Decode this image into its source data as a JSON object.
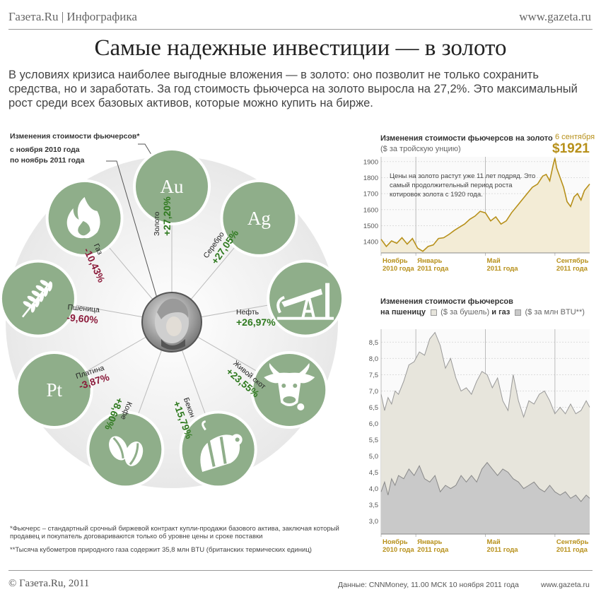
{
  "header": {
    "brand": "Газета.Ru | Инфографика",
    "site": "www.gazeta.ru",
    "title": "Самые надежные инвестиции — в золото",
    "lead": "В условиях кризиса наиболее выгодные вложения — в золото: оно позволит не только сохранить средства, но и заработать. За год стоимость фьючерса на золото выросла на 27,2%. Это максимальный рост среди всех базовых активов, которые можно купить на бирже."
  },
  "wheel": {
    "title": "Изменения стоимости фьючерсов*",
    "period_from": "с ноября 2010 года",
    "period_to": "по ноябрь 2011 года",
    "items": [
      {
        "name": "Золото",
        "change": "+27,20%",
        "value": 27.2,
        "symbol": "Au",
        "icon": "au-symbol"
      },
      {
        "name": "Серебро",
        "change": "+27,05%",
        "value": 27.05,
        "symbol": "Ag",
        "icon": "ag-symbol"
      },
      {
        "name": "Нефть",
        "change": "+26,97%",
        "value": 26.97,
        "symbol": "",
        "icon": "oil-pump-icon"
      },
      {
        "name": "Живой скот",
        "change": "+23,55%",
        "value": 23.55,
        "symbol": "",
        "icon": "cow-icon"
      },
      {
        "name": "Бекон",
        "change": "+15,79%",
        "value": 15.79,
        "symbol": "",
        "icon": "pig-icon"
      },
      {
        "name": "Кофе",
        "change": "+8,60%",
        "value": 8.6,
        "symbol": "",
        "icon": "coffee-bean-icon"
      },
      {
        "name": "Платина",
        "change": "-3,87%",
        "value": -3.87,
        "symbol": "Pt",
        "icon": "pt-symbol"
      },
      {
        "name": "Пшеница",
        "change": "-9,60%",
        "value": -9.6,
        "symbol": "",
        "icon": "wheat-icon"
      },
      {
        "name": "Газ",
        "change": "-10,43%",
        "value": -10.43,
        "symbol": "",
        "icon": "flame-icon"
      }
    ]
  },
  "footnotes": {
    "note1": "*Фьючерс – стандартный срочный биржевой контракт купли-продажи базового актива, заключая который продавец и покупатель договариваются только об уровне цены и сроке поставки",
    "note2": "**Тысяча кубометров природного газа содержит 35,8 млн BTU (британских термических единиц)"
  },
  "footer": {
    "copyright": "© Газета.Ru, 2011",
    "source": "Данные: CNNMoney, 11.00 МСК 10 ноября 2011 года",
    "site": "www.gazeta.ru"
  },
  "colors": {
    "disk": "#8fae8a",
    "gold_line": "#b7901a",
    "gold_area": "#f3ecd6",
    "wheat_area": "#e7e5dc",
    "gas_area": "#c9c9c9",
    "positive": "#2f7a1f",
    "negative": "#8b1a3a"
  },
  "chart_data": [
    {
      "type": "area",
      "title": "Изменения стоимости фьючерсов на золото",
      "subtitle": "($ за тройскую унцию)",
      "latest_date": "6 сентября",
      "latest_value": "$1921",
      "annotation": "Цены на золото растут уже 11 лет подряд. Это самый продолжительный период роста котировок золота с 1920 года.",
      "yticks": [
        1400,
        1500,
        1600,
        1700,
        1800,
        1900
      ],
      "ylim": [
        1330,
        1930
      ],
      "xticks": [
        {
          "line1": "Ноябрь",
          "line2": "2010 года",
          "x": 0
        },
        {
          "line1": "Январь",
          "line2": "2011 года",
          "x": 2
        },
        {
          "line1": "Май",
          "line2": "2011 года",
          "x": 6
        },
        {
          "line1": "Сентябрь",
          "line2": "2011 года",
          "x": 10
        }
      ],
      "xlim": [
        0,
        12
      ],
      "series": [
        {
          "x": [
            0,
            0.3,
            0.6,
            0.9,
            1.2,
            1.5,
            1.8,
            2.1,
            2.4,
            2.7,
            3.0,
            3.3,
            3.6,
            3.9,
            4.2,
            4.5,
            4.8,
            5.1,
            5.4,
            5.7,
            6.0,
            6.3,
            6.6,
            6.9,
            7.2,
            7.5,
            7.8,
            8.1,
            8.4,
            8.7,
            9.0,
            9.3,
            9.5,
            9.7,
            9.9,
            10.0,
            10.1,
            10.3,
            10.5,
            10.7,
            10.9,
            11.1,
            11.3,
            11.5,
            11.7,
            12.0
          ],
          "values": [
            1415,
            1370,
            1405,
            1390,
            1425,
            1385,
            1420,
            1360,
            1340,
            1370,
            1380,
            1420,
            1425,
            1445,
            1470,
            1490,
            1510,
            1540,
            1560,
            1590,
            1580,
            1530,
            1555,
            1510,
            1530,
            1580,
            1620,
            1660,
            1700,
            1740,
            1760,
            1810,
            1820,
            1780,
            1880,
            1921,
            1860,
            1800,
            1740,
            1650,
            1620,
            1680,
            1700,
            1660,
            1720,
            1760
          ]
        }
      ]
    },
    {
      "type": "area",
      "title": "Изменения стоимости фьючерсов",
      "legend": [
        {
          "prefix": "на пшеницу",
          "label": "($ за бушель)",
          "connector": "и газ",
          "color": "#e7e5dc"
        },
        {
          "prefix": "",
          "label": "($ за млн BTU**)",
          "connector": "",
          "color": "#c9c9c9"
        }
      ],
      "yticks": [
        "8,5",
        "8,0",
        "7,5",
        "7,0",
        "6,5",
        "6,0",
        "5,5",
        "5,0",
        "4,5",
        "4,0",
        "3,5",
        "3,0"
      ],
      "ytick_values": [
        8.5,
        8.0,
        7.5,
        7.0,
        6.5,
        6.0,
        5.5,
        5.0,
        4.5,
        4.0,
        3.5,
        3.0
      ],
      "ylim": [
        2.6,
        8.9
      ],
      "xticks": [
        {
          "line1": "Ноябрь",
          "line2": "2010 года",
          "x": 0
        },
        {
          "line1": "Январь",
          "line2": "2011 года",
          "x": 2
        },
        {
          "line1": "Май",
          "line2": "2011 года",
          "x": 6
        },
        {
          "line1": "Сентябрь",
          "line2": "2011 года",
          "x": 10
        }
      ],
      "xlim": [
        0,
        12
      ],
      "series": [
        {
          "name": "на пшеницу",
          "x": [
            0,
            0.2,
            0.4,
            0.6,
            0.8,
            1.0,
            1.3,
            1.6,
            1.9,
            2.2,
            2.5,
            2.8,
            3.1,
            3.4,
            3.7,
            4.0,
            4.3,
            4.6,
            4.9,
            5.2,
            5.5,
            5.8,
            6.1,
            6.4,
            6.7,
            7.0,
            7.3,
            7.6,
            7.9,
            8.2,
            8.5,
            8.8,
            9.1,
            9.4,
            9.7,
            10.0,
            10.3,
            10.6,
            10.9,
            11.2,
            11.5,
            11.8,
            12.0
          ],
          "values": [
            6.9,
            6.4,
            6.8,
            6.6,
            7.0,
            6.9,
            7.3,
            7.8,
            7.9,
            8.2,
            8.1,
            8.6,
            8.8,
            8.4,
            7.7,
            8.0,
            7.4,
            7.0,
            7.1,
            6.9,
            7.3,
            7.6,
            7.5,
            7.1,
            7.4,
            6.7,
            6.4,
            7.5,
            6.7,
            6.2,
            6.7,
            6.6,
            6.9,
            7.0,
            6.7,
            6.3,
            6.5,
            6.3,
            6.6,
            6.3,
            6.4,
            6.7,
            6.5
          ]
        },
        {
          "name": "газ",
          "x": [
            0,
            0.2,
            0.4,
            0.6,
            0.8,
            1.0,
            1.3,
            1.6,
            1.9,
            2.2,
            2.5,
            2.8,
            3.1,
            3.4,
            3.7,
            4.0,
            4.3,
            4.6,
            4.9,
            5.2,
            5.5,
            5.8,
            6.1,
            6.4,
            6.7,
            7.0,
            7.3,
            7.6,
            7.9,
            8.2,
            8.5,
            8.8,
            9.1,
            9.4,
            9.7,
            10.0,
            10.3,
            10.6,
            10.9,
            11.2,
            11.5,
            11.8,
            12.0
          ],
          "values": [
            3.9,
            4.2,
            3.8,
            4.3,
            4.1,
            4.4,
            4.3,
            4.6,
            4.4,
            4.7,
            4.3,
            4.2,
            4.4,
            3.9,
            4.1,
            4.0,
            4.1,
            4.4,
            4.2,
            4.4,
            4.2,
            4.6,
            4.8,
            4.6,
            4.4,
            4.6,
            4.5,
            4.3,
            4.2,
            4.0,
            4.1,
            4.2,
            4.0,
            3.9,
            4.1,
            3.9,
            3.8,
            3.9,
            3.7,
            3.8,
            3.6,
            3.8,
            3.7
          ]
        }
      ]
    }
  ]
}
